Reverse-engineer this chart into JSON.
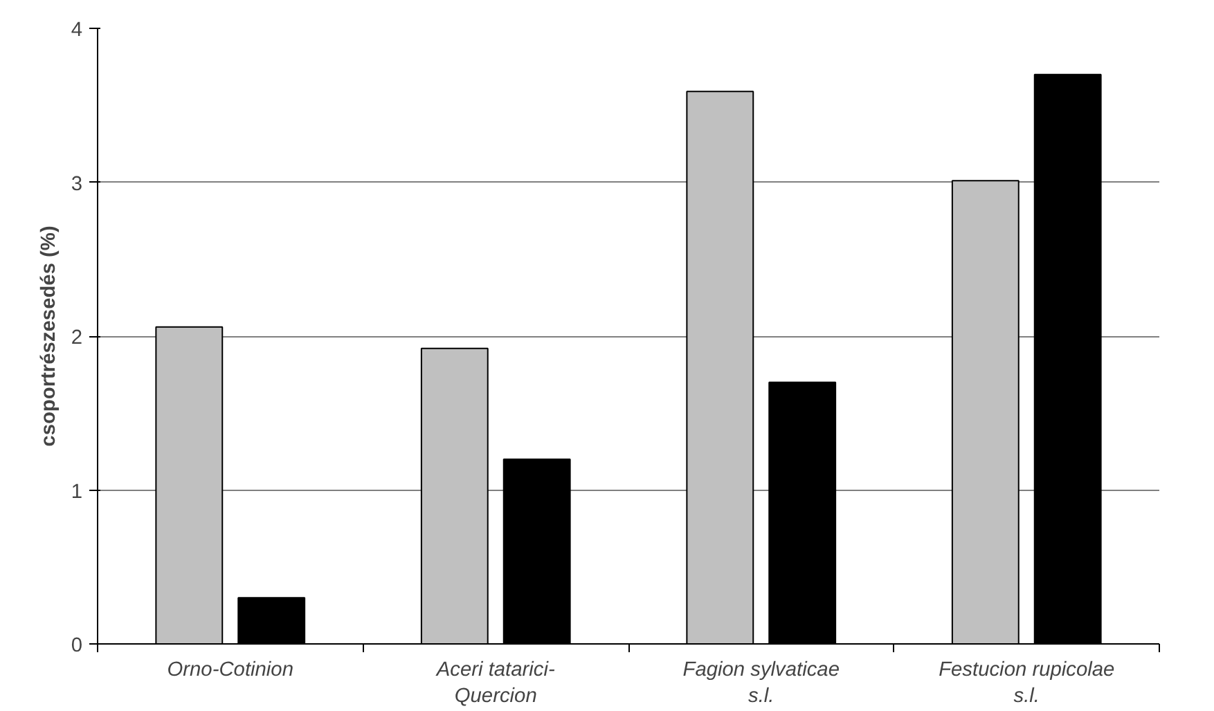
{
  "chart_data": {
    "type": "bar",
    "ylabel": "csoportrészesedés (%)",
    "categories": [
      "Orno-Cotinion",
      "Aceri tatarici-\nQuercion",
      "Fagion sylvaticae\ns.l.",
      "Festucion rupicolae\ns.l."
    ],
    "series": [
      {
        "color": "#c0c0c0",
        "values": [
          2.06,
          1.92,
          3.59,
          3.01
        ]
      },
      {
        "color": "#000000",
        "values": [
          0.3,
          1.2,
          1.7,
          3.7
        ]
      }
    ],
    "ylim": [
      0,
      4
    ],
    "yticks": [
      0,
      1,
      2,
      3,
      4
    ],
    "grid": "y"
  }
}
